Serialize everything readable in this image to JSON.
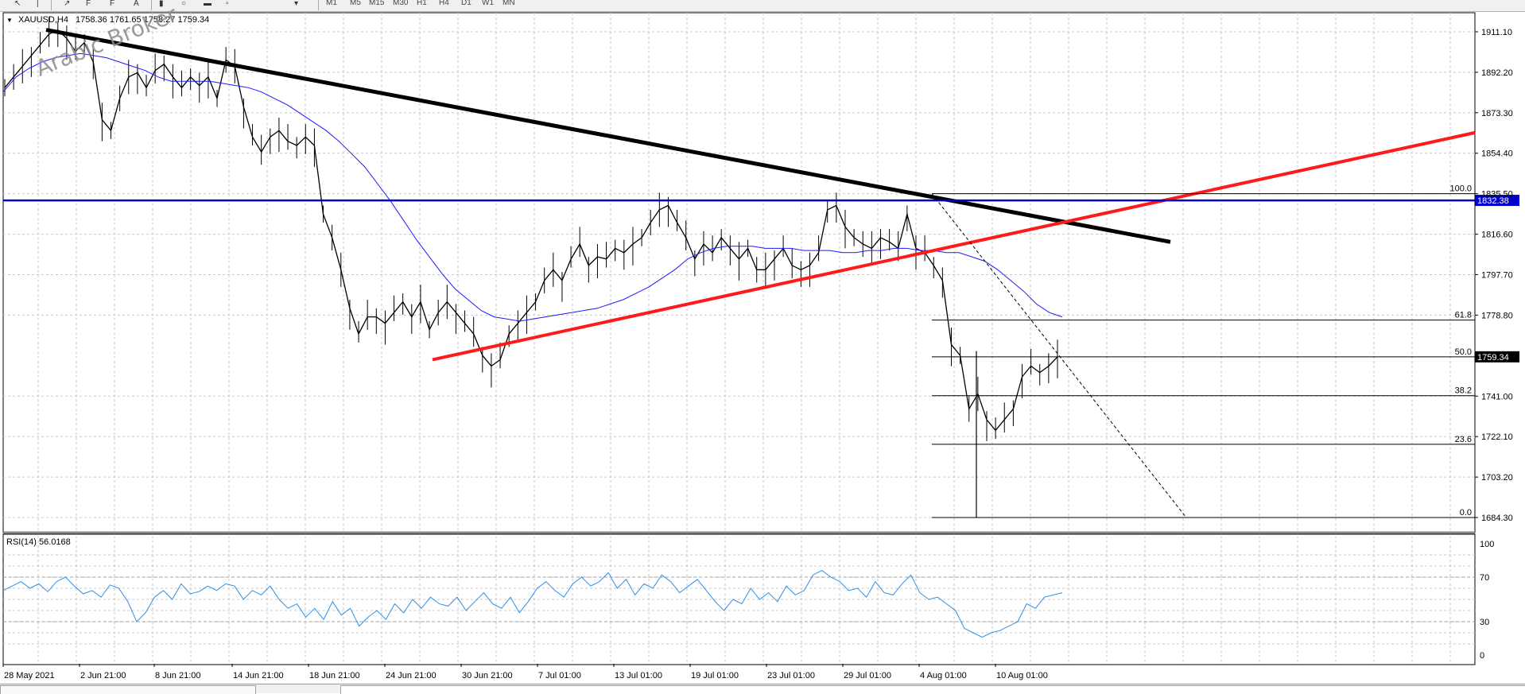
{
  "toolbar": {
    "timeframes": [
      "M1",
      "M5",
      "M15",
      "M30",
      "H1",
      "H4",
      "D1",
      "W1",
      "MN"
    ]
  },
  "watermark": "Arabic Broker",
  "main_title": {
    "symbol": "XAUUSD,H4",
    "ohlc": "1758.36 1761.65 1758.27 1759.34"
  },
  "rsi_title": "RSI(14) 56.0168",
  "colors": {
    "price": "#000000",
    "ma": "#1a1aff",
    "trend_black": "#000000",
    "trend_red": "#ff1a1a",
    "hline_blue": "#0000cc",
    "rsi": "#2b8fe8",
    "grid": "#c8c8c8",
    "label_bg_blue": "#0000cc",
    "label_bg_black": "#000000"
  },
  "chart_data": [
    {
      "type": "line",
      "title": "XAUUSD,H4",
      "x_ticks": [
        "28 May 2021",
        "2 Jun 21:00",
        "8 Jun 21:00",
        "14 Jun 21:00",
        "18 Jun 21:00",
        "24 Jun 21:00",
        "30 Jun 21:00",
        "7 Jul 01:00",
        "13 Jul 01:00",
        "19 Jul 01:00",
        "23 Jul 01:00",
        "29 Jul 01:00",
        "4 Aug 01:00",
        "10 Aug 01:00"
      ],
      "y_ticks": [
        "1911.10",
        "1892.20",
        "1873.30",
        "1854.40",
        "1835.50",
        "1816.60",
        "1797.70",
        "1778.80",
        "1759.34",
        "1741.00",
        "1722.10",
        "1703.20",
        "1684.30"
      ],
      "ylim": [
        1678,
        1920
      ],
      "price_series": [
        1885,
        1890,
        1895,
        1900,
        1905,
        1910,
        1912,
        1908,
        1902,
        1906,
        1897,
        1870,
        1865,
        1880,
        1890,
        1892,
        1885,
        1893,
        1896,
        1890,
        1885,
        1890,
        1886,
        1890,
        1880,
        1898,
        1895,
        1876,
        1862,
        1855,
        1862,
        1865,
        1860,
        1858,
        1862,
        1858,
        1826,
        1815,
        1800,
        1782,
        1770,
        1778,
        1778,
        1775,
        1780,
        1785,
        1778,
        1785,
        1772,
        1780,
        1785,
        1780,
        1775,
        1770,
        1760,
        1755,
        1758,
        1770,
        1775,
        1780,
        1785,
        1795,
        1800,
        1795,
        1805,
        1812,
        1802,
        1806,
        1805,
        1810,
        1808,
        1812,
        1815,
        1822,
        1828,
        1830,
        1822,
        1815,
        1805,
        1812,
        1808,
        1815,
        1810,
        1805,
        1810,
        1800,
        1800,
        1805,
        1810,
        1802,
        1800,
        1802,
        1808,
        1828,
        1830,
        1820,
        1815,
        1812,
        1810,
        1815,
        1813,
        1810,
        1826,
        1810,
        1808,
        1802,
        1795,
        1765,
        1760,
        1735,
        1742,
        1730,
        1725,
        1730,
        1735,
        1750,
        1755,
        1752,
        1755,
        1759.34
      ],
      "ma_series": [
        1883,
        1890,
        1894,
        1897,
        1899,
        1900,
        1901,
        1900,
        1899,
        1897,
        1895,
        1893,
        1890,
        1888,
        1888,
        1888,
        1888,
        1887,
        1886,
        1885,
        1883,
        1880,
        1877,
        1873,
        1869,
        1865,
        1860,
        1854,
        1848,
        1840,
        1832,
        1823,
        1814,
        1806,
        1798,
        1791,
        1786,
        1781,
        1778,
        1777,
        1776,
        1777,
        1778,
        1779,
        1780,
        1781,
        1782,
        1784,
        1786,
        1789,
        1792,
        1796,
        1800,
        1805,
        1808,
        1810,
        1811,
        1811,
        1811,
        1810,
        1810,
        1810,
        1809,
        1809,
        1809,
        1808,
        1808,
        1809,
        1809,
        1810,
        1810,
        1809,
        1809,
        1808,
        1808,
        1806,
        1804,
        1800,
        1795,
        1790,
        1784,
        1780,
        1778
      ],
      "trendlines": [
        {
          "name": "black-downtrend",
          "from": [
            "28 May 2021",
            1912
          ],
          "to": [
            "12 Aug",
            1813
          ]
        },
        {
          "name": "red-uptrend",
          "from": [
            "25 Jun",
            1758
          ],
          "to": [
            "end",
            1865
          ]
        }
      ],
      "horizontal_lines": [
        {
          "name": "resistance",
          "value": 1832.38,
          "label": "1832.38"
        }
      ],
      "current_price": {
        "value": 1759.34,
        "label": "1759.34"
      },
      "fibonacci": {
        "levels": [
          {
            "label": "100.0",
            "value": 1835.5
          },
          {
            "label": "61.8",
            "value": 1776.5
          },
          {
            "label": "50.0",
            "value": 1759.34
          },
          {
            "label": "38.2",
            "value": 1741.2
          },
          {
            "label": "23.6",
            "value": 1718.5
          },
          {
            "label": "0.0",
            "value": 1684.3
          }
        ]
      }
    },
    {
      "type": "line",
      "title": "RSI(14) 56.0168",
      "y_ticks": [
        "100",
        "70",
        "30",
        "0"
      ],
      "ylim": [
        0,
        100
      ],
      "levels": [
        70,
        30
      ],
      "values": [
        58,
        62,
        66,
        60,
        64,
        57,
        66,
        70,
        62,
        55,
        58,
        52,
        63,
        60,
        48,
        30,
        38,
        52,
        58,
        50,
        64,
        55,
        57,
        62,
        58,
        64,
        62,
        50,
        58,
        54,
        62,
        50,
        42,
        46,
        34,
        42,
        32,
        48,
        36,
        42,
        26,
        34,
        40,
        32,
        46,
        38,
        50,
        42,
        52,
        46,
        44,
        52,
        40,
        48,
        56,
        46,
        42,
        52,
        38,
        48,
        60,
        66,
        58,
        52,
        64,
        70,
        62,
        66,
        74,
        60,
        68,
        54,
        64,
        60,
        72,
        66,
        56,
        62,
        68,
        58,
        48,
        40,
        50,
        46,
        60,
        50,
        56,
        48,
        62,
        54,
        58,
        72,
        76,
        70,
        66,
        58,
        60,
        52,
        66,
        56,
        54,
        64,
        72,
        56,
        50,
        52,
        46,
        40,
        24,
        20,
        16,
        20,
        22,
        26,
        30,
        46,
        42,
        52,
        54,
        56
      ]
    }
  ]
}
